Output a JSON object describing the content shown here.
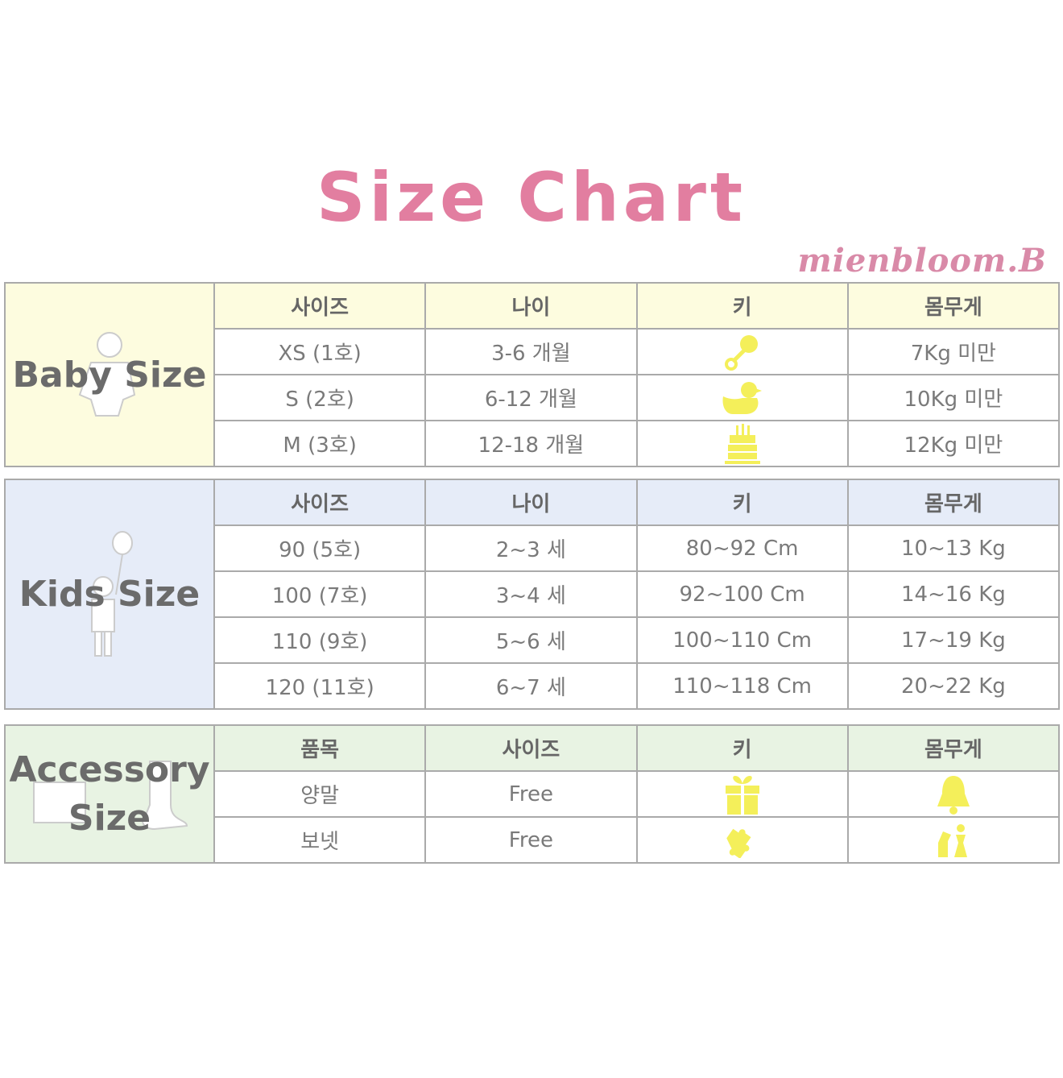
{
  "title": "Size Chart",
  "brand": "mienbloom.B",
  "colors": {
    "title": "#e27ea0",
    "brand": "#d98aa8",
    "baby_bg": "#fdfcdf",
    "kids_bg": "#e6ecf8",
    "accessory_bg": "#e8f3e3",
    "icon_yellow": "#f4ef5a"
  },
  "baby": {
    "label": "Baby Size",
    "headers": [
      "사이즈",
      "나이",
      "키",
      "몸무게"
    ],
    "rows": [
      {
        "size": "XS (1호)",
        "age": "3-6 개월",
        "height_icon": "rattle-icon",
        "weight": "7Kg 미만"
      },
      {
        "size": "S (2호)",
        "age": "6-12 개월",
        "height_icon": "rubber-duck-icon",
        "weight": "10Kg 미만"
      },
      {
        "size": "M (3호)",
        "age": "12-18 개월",
        "height_icon": "birthday-cake-icon",
        "weight": "12Kg 미만"
      }
    ]
  },
  "kids": {
    "label": "Kids Size",
    "headers": [
      "사이즈",
      "나이",
      "키",
      "몸무게"
    ],
    "rows": [
      {
        "size": "90 (5호)",
        "age": "2~3 세",
        "height": "80~92 Cm",
        "weight": "10~13 Kg"
      },
      {
        "size": "100 (7호)",
        "age": "3~4 세",
        "height": "92~100 Cm",
        "weight": "14~16 Kg"
      },
      {
        "size": "110 (9호)",
        "age": "5~6 세",
        "height": "100~110 Cm",
        "weight": "17~19 Kg"
      },
      {
        "size": "120 (11호)",
        "age": "6~7 세",
        "height": "110~118 Cm",
        "weight": "20~22 Kg"
      }
    ]
  },
  "accessory": {
    "label_line1": "Accessory",
    "label_line2": "Size",
    "headers": [
      "품목",
      "사이즈",
      "키",
      "몸무게"
    ],
    "rows": [
      {
        "item": "양말",
        "size": "Free",
        "height_icon": "gift-box-icon",
        "weight_icon": "bell-icon"
      },
      {
        "item": "보넷",
        "size": "Free",
        "height_icon": "puzzle-piece-icon",
        "weight_icon": "chess-pieces-icon"
      }
    ]
  }
}
